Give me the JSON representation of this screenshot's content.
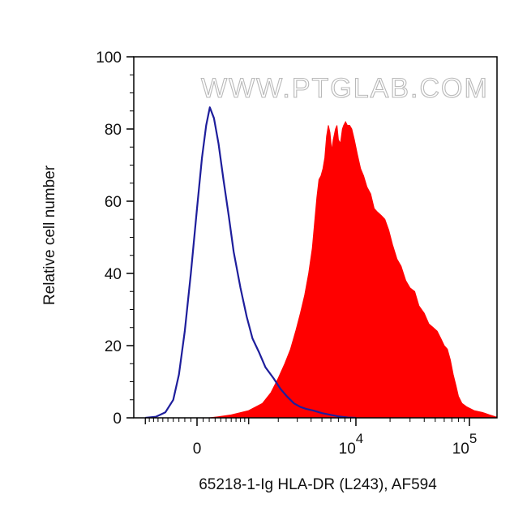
{
  "chart_data": {
    "type": "area",
    "xlabel": "65218-1-Ig HLA-DR (L243), AF594",
    "ylabel": "Relative cell number",
    "watermark": "WWW.PTGLAB.COM",
    "x_scale": "biexponential",
    "xlim": [
      -1000,
      200000
    ],
    "ylim": [
      0,
      100
    ],
    "y_ticks": [
      "0",
      "20",
      "40",
      "60",
      "80",
      "100"
    ],
    "x_ticks": [
      {
        "value": 0,
        "label": "0",
        "exp": ""
      },
      {
        "value": 10000,
        "label": "10",
        "exp": "4"
      },
      {
        "value": 100000,
        "label": "10",
        "exp": "5"
      }
    ],
    "grid": false,
    "series": [
      {
        "color": "#ff0000",
        "style": "filled",
        "points": [
          [
            -300,
            0
          ],
          [
            0,
            0
          ],
          [
            200,
            0
          ],
          [
            350,
            0.3
          ],
          [
            600,
            0.8
          ],
          [
            1000,
            2
          ],
          [
            1400,
            4
          ],
          [
            1700,
            7
          ],
          [
            2000,
            11
          ],
          [
            2300,
            15
          ],
          [
            2600,
            19
          ],
          [
            2900,
            24
          ],
          [
            3200,
            29
          ],
          [
            3500,
            34
          ],
          [
            3800,
            40
          ],
          [
            4100,
            47
          ],
          [
            4300,
            54
          ],
          [
            4500,
            61
          ],
          [
            4700,
            66
          ],
          [
            4900,
            67
          ],
          [
            5100,
            69
          ],
          [
            5300,
            72
          ],
          [
            5500,
            78
          ],
          [
            5700,
            81
          ],
          [
            5900,
            79
          ],
          [
            6100,
            74
          ],
          [
            6300,
            77
          ],
          [
            6600,
            80
          ],
          [
            6800,
            81
          ],
          [
            7000,
            77
          ],
          [
            7300,
            76
          ],
          [
            7600,
            80
          ],
          [
            7800,
            81
          ],
          [
            8100,
            82
          ],
          [
            8400,
            81
          ],
          [
            8800,
            81
          ],
          [
            9200,
            80
          ],
          [
            9700,
            77
          ],
          [
            10300,
            73
          ],
          [
            11000,
            69
          ],
          [
            11700,
            67
          ],
          [
            12500,
            64
          ],
          [
            13500,
            62
          ],
          [
            14500,
            58
          ],
          [
            15500,
            57
          ],
          [
            16800,
            56
          ],
          [
            18000,
            55
          ],
          [
            19500,
            52
          ],
          [
            21000,
            48
          ],
          [
            23000,
            44
          ],
          [
            25000,
            42
          ],
          [
            27500,
            38
          ],
          [
            30000,
            36
          ],
          [
            33000,
            35
          ],
          [
            36000,
            31
          ],
          [
            40000,
            29
          ],
          [
            44000,
            26
          ],
          [
            48000,
            25
          ],
          [
            52000,
            24
          ],
          [
            56000,
            22
          ],
          [
            60000,
            20
          ],
          [
            64000,
            19
          ],
          [
            68000,
            16
          ],
          [
            72000,
            12
          ],
          [
            76000,
            9
          ],
          [
            80000,
            6
          ],
          [
            86000,
            4
          ],
          [
            95000,
            3
          ],
          [
            110000,
            2
          ],
          [
            130000,
            1.5
          ],
          [
            150000,
            0.8
          ],
          [
            170000,
            0.3
          ],
          [
            190000,
            0
          ]
        ]
      },
      {
        "color": "#1e1e9c",
        "style": "line",
        "points": [
          [
            -1000,
            0
          ],
          [
            -750,
            0.3
          ],
          [
            -550,
            1.5
          ],
          [
            -400,
            5
          ],
          [
            -300,
            12
          ],
          [
            -200,
            24
          ],
          [
            -100,
            40
          ],
          [
            0,
            58
          ],
          [
            80,
            72
          ],
          [
            150,
            81
          ],
          [
            210,
            86
          ],
          [
            280,
            83
          ],
          [
            360,
            76
          ],
          [
            450,
            66
          ],
          [
            550,
            56
          ],
          [
            650,
            46
          ],
          [
            800,
            36
          ],
          [
            950,
            28
          ],
          [
            1100,
            22
          ],
          [
            1300,
            18
          ],
          [
            1500,
            14
          ],
          [
            1800,
            11
          ],
          [
            2100,
            8
          ],
          [
            2400,
            6
          ],
          [
            2800,
            4
          ],
          [
            3200,
            3
          ],
          [
            3600,
            2.5
          ],
          [
            4200,
            2
          ],
          [
            5000,
            1.3
          ],
          [
            6000,
            0.8
          ],
          [
            7000,
            0.4
          ],
          [
            8500,
            0.1
          ],
          [
            10000,
            0
          ]
        ]
      }
    ]
  }
}
